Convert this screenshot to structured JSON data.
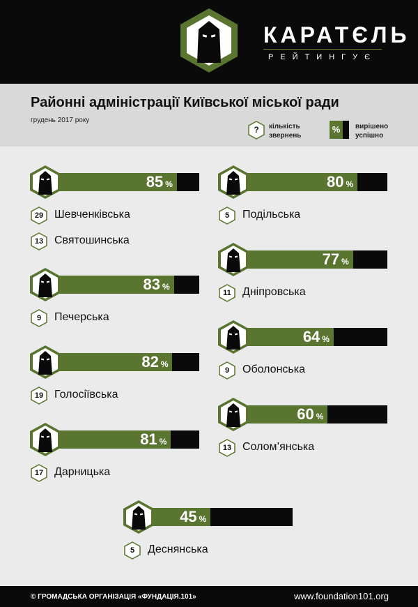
{
  "brand": {
    "name": "КАРАТЄЛЬ",
    "subtitle": "РЕЙТИНГУЄ"
  },
  "title": "Районні адміністрації Київської міської ради",
  "date": "грудень 2017 року",
  "legend": {
    "count_symbol": "?",
    "count_label": "кількість звернень",
    "pct_symbol": "%",
    "pct_label": "вирішено успішно"
  },
  "percent_sign": "%",
  "colors": {
    "accent_green": "#5a7530",
    "black": "#0a0a0a",
    "band": "#d9d9d9",
    "background": "#ebebeb"
  },
  "icon": "hooded-figure-hex-icon",
  "districts": [
    {
      "name": "Шевченківська",
      "count": "29",
      "percent": 85
    },
    {
      "name": "Святошинська",
      "count": "13",
      "percent": 85
    },
    {
      "name": "Печерська",
      "count": "9",
      "percent": 83
    },
    {
      "name": "Голосіївська",
      "count": "19",
      "percent": 82
    },
    {
      "name": "Дарницька",
      "count": "17",
      "percent": 81
    },
    {
      "name": "Подільська",
      "count": "5",
      "percent": 80
    },
    {
      "name": "Дніпровська",
      "count": "11",
      "percent": 77
    },
    {
      "name": "Оболонська",
      "count": "9",
      "percent": 64
    },
    {
      "name": "Солом’янська",
      "count": "13",
      "percent": 60
    },
    {
      "name": "Деснянська",
      "count": "5",
      "percent": 45
    }
  ],
  "footer": {
    "left": "© ГРОМАДСЬКА ОРГАНІЗАЦІЯ «ФУНДАЦІЯ.101»",
    "right": "www.foundation101.org"
  }
}
